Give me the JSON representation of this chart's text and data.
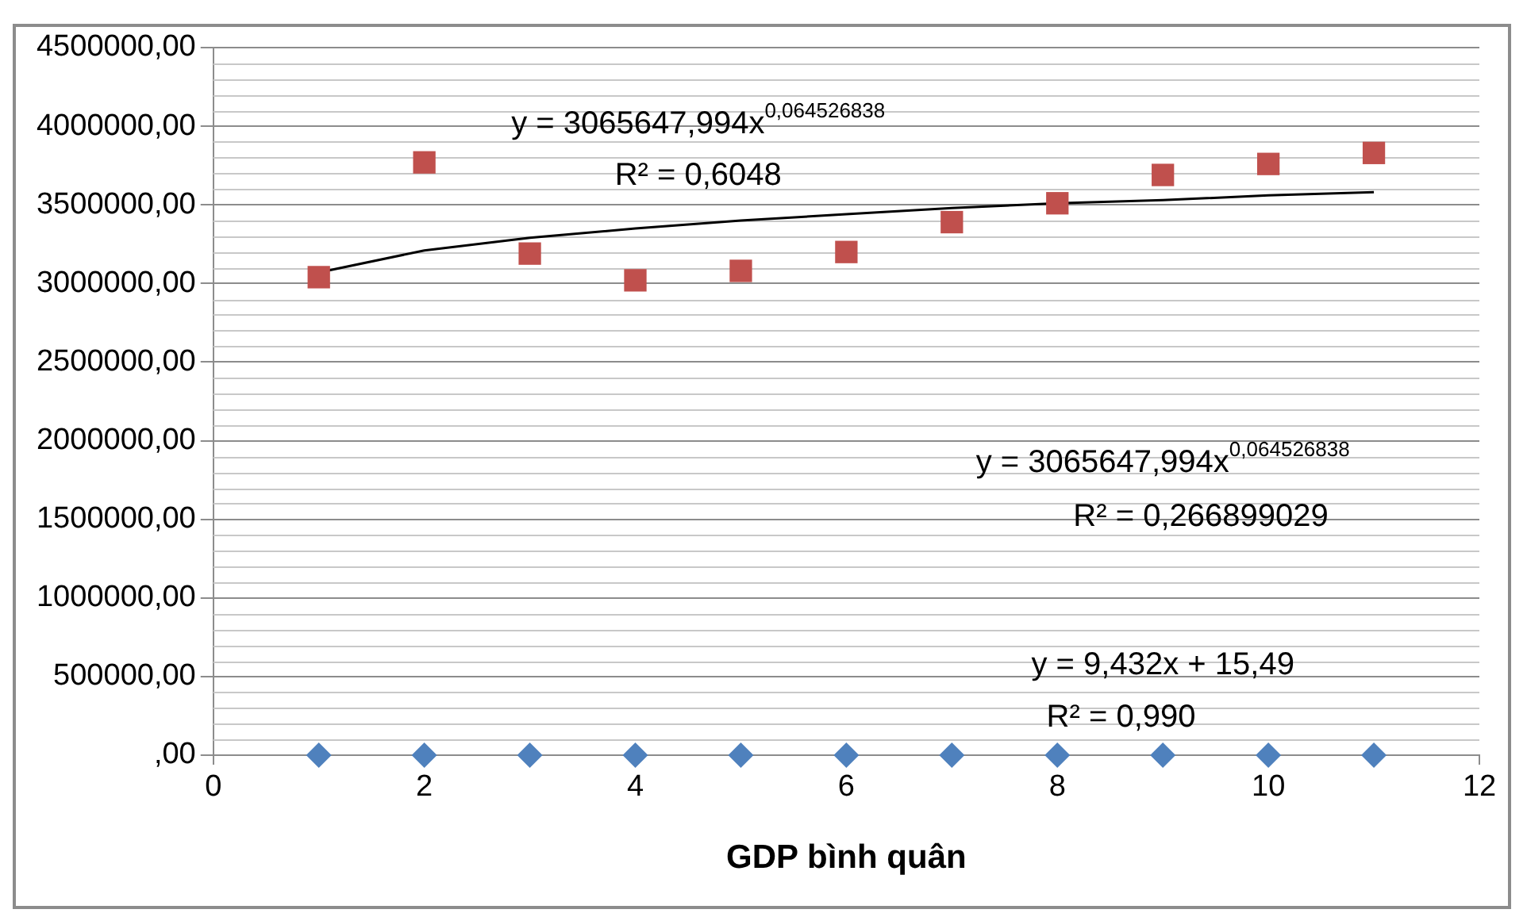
{
  "chart_data": {
    "type": "scatter",
    "xlabel": "GDP bình quân",
    "x": [
      1,
      2,
      3,
      4,
      5,
      6,
      7,
      8,
      9,
      10,
      11
    ],
    "xlim": [
      0,
      12
    ],
    "xticks": [
      0,
      2,
      4,
      6,
      8,
      10,
      12
    ],
    "ylim": [
      0,
      4500000
    ],
    "yticks": [
      {
        "value": 0,
        "label": ",00"
      },
      {
        "value": 500000,
        "label": "500000,00"
      },
      {
        "value": 1000000,
        "label": "1000000,00"
      },
      {
        "value": 1500000,
        "label": "1500000,00"
      },
      {
        "value": 2000000,
        "label": "2000000,00"
      },
      {
        "value": 2500000,
        "label": "2500000,00"
      },
      {
        "value": 3000000,
        "label": "3000000,00"
      },
      {
        "value": 3500000,
        "label": "3500000,00"
      },
      {
        "value": 4000000,
        "label": "4000000,00"
      },
      {
        "value": 4500000,
        "label": "4500000,00"
      }
    ],
    "grid": "y",
    "legend": false,
    "series": [
      {
        "type": "scatter",
        "color": "#4f81bd",
        "marker": "diamond",
        "values": [
          0,
          0,
          0,
          0,
          0,
          0,
          0,
          0,
          0,
          0,
          0
        ]
      },
      {
        "type": "scatter",
        "color": "#c0504d",
        "marker": "square",
        "values": [
          3040000,
          3770000,
          3190000,
          3020000,
          3080000,
          3200000,
          3390000,
          3510000,
          3690000,
          3760000,
          3830000
        ]
      },
      {
        "type": "line",
        "color": "#000000",
        "marker": "none",
        "x": [
          1,
          2,
          3,
          4,
          5,
          6,
          7,
          8,
          9,
          10,
          11
        ],
        "values": [
          3070000,
          3210000,
          3290000,
          3350000,
          3400000,
          3440000,
          3480000,
          3510000,
          3530000,
          3560000,
          3580000
        ]
      }
    ],
    "annotations": [
      "y = 3065647,994x$^{0,064526838}$",
      "R² = 0,6048",
      "y = 3065647,994x$^{0,064526838}$",
      "R² = 0,266899029",
      "y = 9,432x + 15,49",
      "R² = 0,990"
    ]
  }
}
